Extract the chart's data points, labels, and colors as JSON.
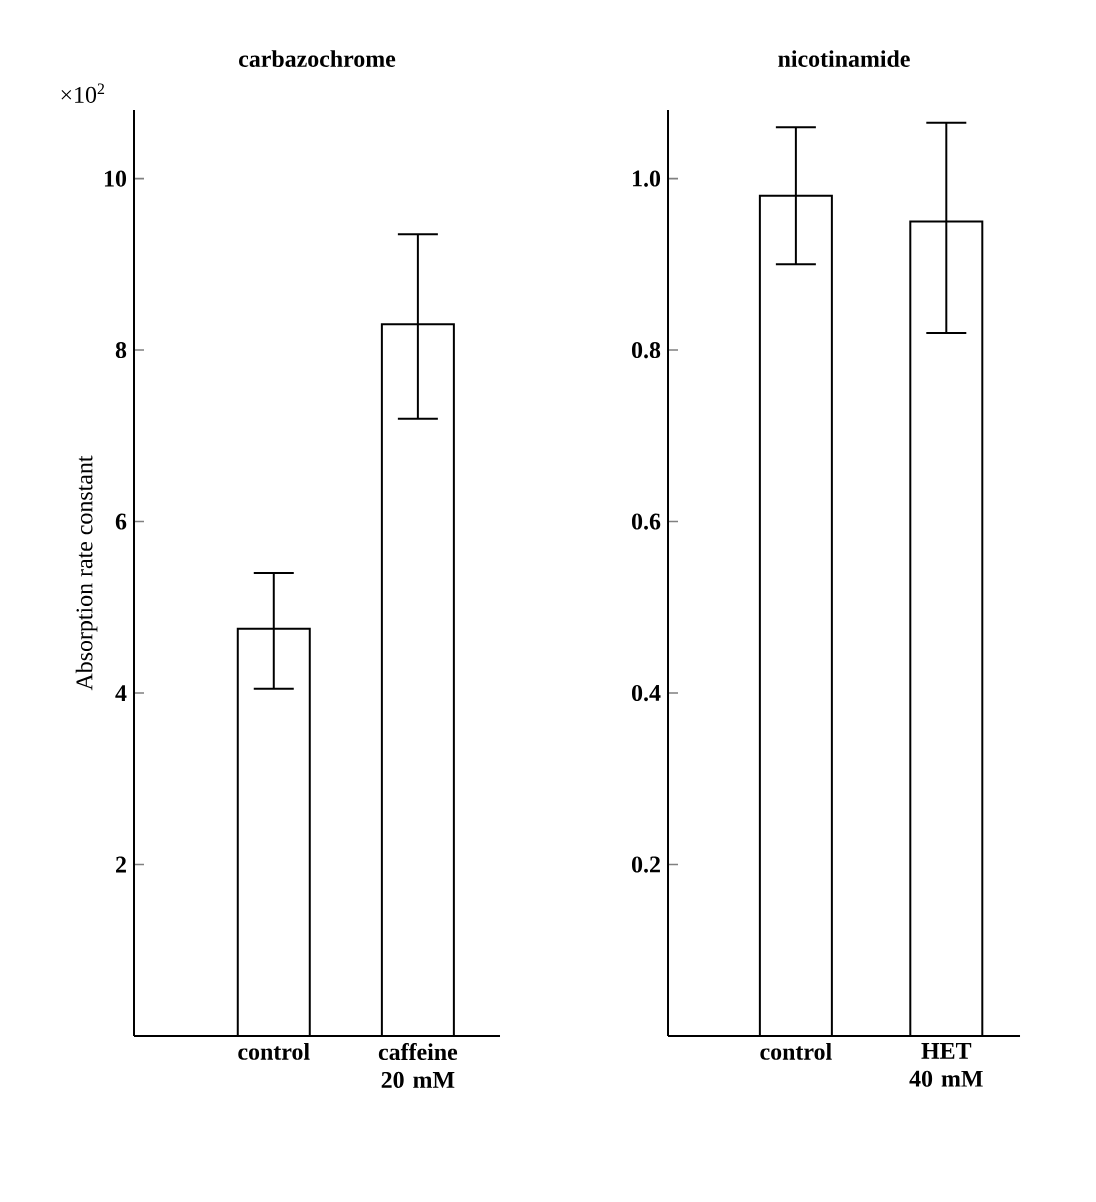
{
  "chart_data": [
    {
      "type": "bar",
      "title": "carbazochrome",
      "ylabel": "Absorption rate constant",
      "annotations": [
        "×10$^{2}$"
      ],
      "categories": [
        "control",
        "caffeine 20 mM"
      ],
      "values": [
        4.75,
        8.3
      ],
      "errors": [
        [
          4.05,
          5.4
        ],
        [
          7.2,
          9.35
        ]
      ],
      "color": "#ffffff",
      "ylim": [
        0,
        10.8
      ],
      "yticks": [
        2,
        4,
        6,
        8,
        10
      ]
    },
    {
      "type": "bar",
      "title": "nicotinamide",
      "categories": [
        "control",
        "HET 40 mM"
      ],
      "values": [
        0.98,
        0.95
      ],
      "errors": [
        [
          0.9,
          1.06
        ],
        [
          0.82,
          1.065
        ]
      ],
      "color": "#ffffff",
      "ylim": [
        0,
        1.08
      ],
      "yticks": [
        0.2,
        0.4,
        0.6,
        0.8,
        {
          "value": 1.0,
          "label": "1.0"
        }
      ]
    }
  ]
}
